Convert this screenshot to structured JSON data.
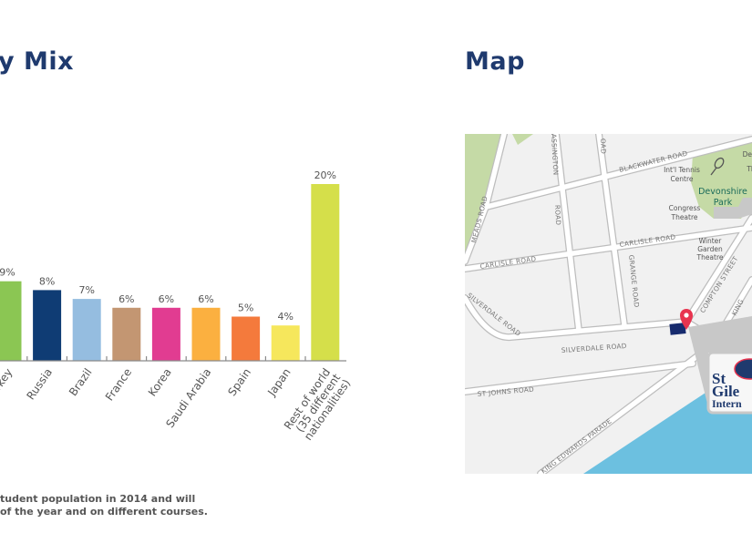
{
  "headings": {
    "left": "y Mix",
    "right": "Map"
  },
  "chart_data": {
    "type": "bar",
    "categories": [
      "Turkey",
      "Russia",
      "Brazil",
      "France",
      "Korea",
      "Saudi Arabia",
      "Spain",
      "Japan",
      "Rest of world (35 different nationalities)"
    ],
    "category_lines": [
      [
        "Turkey"
      ],
      [
        "Russia"
      ],
      [
        "Brazil"
      ],
      [
        "France"
      ],
      [
        "Korea"
      ],
      [
        "Saudi Arabia"
      ],
      [
        "Spain"
      ],
      [
        "Japan"
      ],
      [
        "Rest of world",
        "(35 different",
        "nationalities)"
      ]
    ],
    "values": [
      9,
      8,
      7,
      6,
      6,
      6,
      5,
      4,
      20
    ],
    "labels": [
      "9%",
      "8%",
      "7%",
      "6%",
      "6%",
      "6%",
      "5%",
      "4%",
      "20%"
    ],
    "colors": [
      "#8bc653",
      "#0f3c74",
      "#95bde0",
      "#c39672",
      "#e13c91",
      "#fbb040",
      "#f47a3c",
      "#f6e75c",
      "#d5df4a"
    ],
    "unit": "%",
    "ylim": [
      0,
      20
    ],
    "grid": false
  },
  "footnote": {
    "line1": "tudent population in 2014 and will",
    "line2": "of the year and on different courses."
  },
  "map": {
    "roads": {
      "blackwater": "BLACKWATER ROAD",
      "carlisle_left": "CARLISLE ROAD",
      "carlisle_right": "CARLISLE ROAD",
      "silverdale_left": "SILVERDALE ROAD",
      "silverdale": "SILVERDALE ROAD",
      "st_johns": "ST JOHNS ROAD",
      "king_edwards": "KING EDWARDS PARADE",
      "compton": "COMPTON STREET",
      "grange": "GRANGE ROAD",
      "lassington": "ASSINGTON",
      "lassington_road": "ROAD",
      "meads": "MEADS ROAD",
      "top_road": "OAD",
      "king": "KING"
    },
    "places": {
      "tennis1": "Int'l Tennis",
      "tennis2": "Centre",
      "park1": "Devonshire",
      "park2": "Park",
      "congress1": "Congress",
      "congress2": "Theatre",
      "winter1": "Winter",
      "winter2": "Garden",
      "winter3": "Theatre",
      "dev_clip": "Dev",
      "th_clip": "Th"
    },
    "logo": {
      "line1": "St",
      "line2": "Gile",
      "line3": "Intern"
    },
    "colors": {
      "land": "#f1f1f1",
      "park": "#c5daa6",
      "sea": "#6cc0e0",
      "pin": "#e8344f",
      "building": "#172b6e"
    }
  }
}
